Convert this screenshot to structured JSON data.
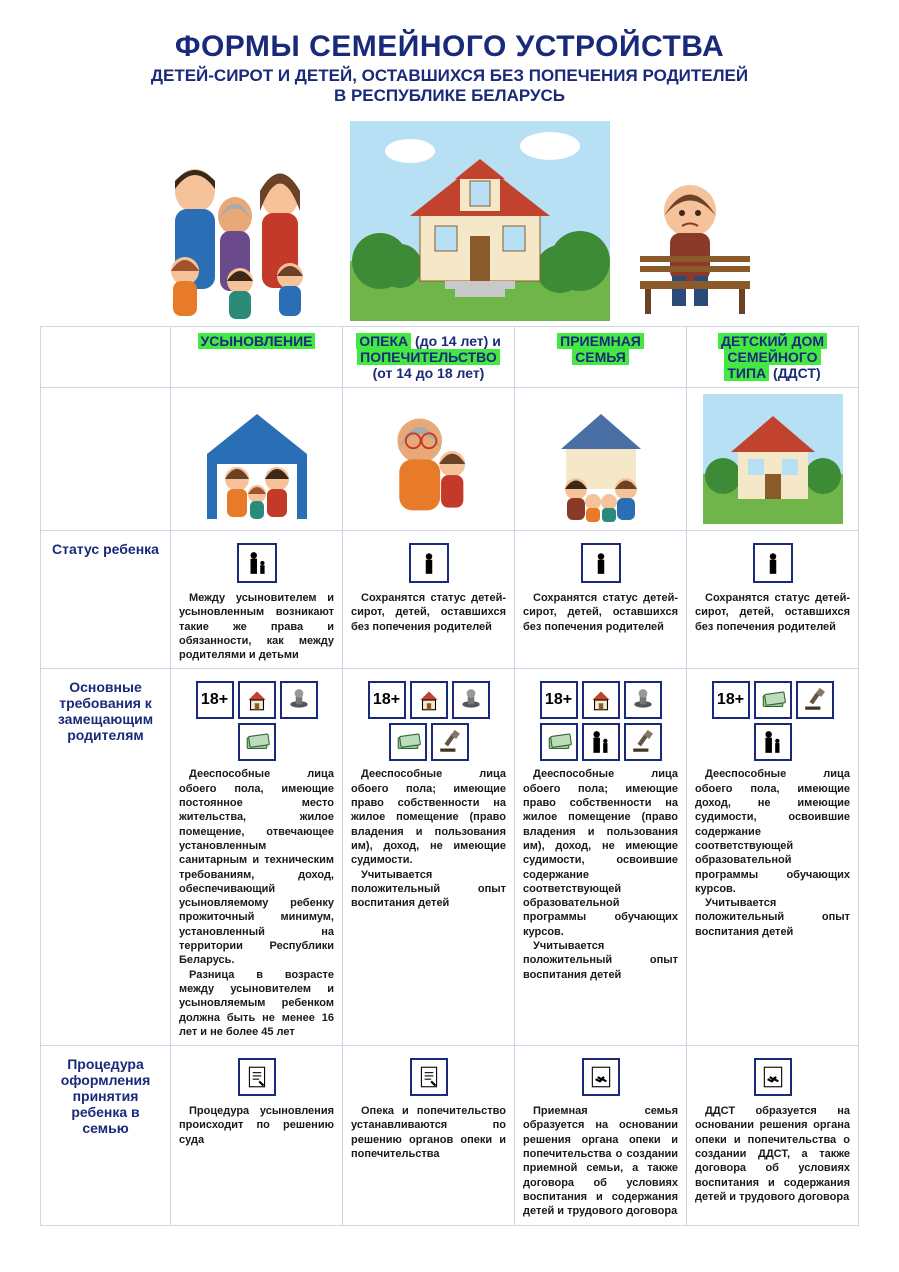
{
  "colors": {
    "primary": "#1a2a7a",
    "highlight": "#43e843",
    "border": "#d0d4e4",
    "background": "#ffffff",
    "text": "#1a1a1a",
    "sky": "#b8e0f5",
    "grass": "#6fb54a",
    "bush": "#3d8b37",
    "cloud": "#ffffff",
    "roof": "#c1432e",
    "wall_cream": "#f5e8c8",
    "wall_blue": "#4a6fa5",
    "brown": "#8b5a2b",
    "skin1": "#f5c29a",
    "skin2": "#e8a878",
    "hair_dark": "#3a2818",
    "hair_brown": "#6b4226",
    "hair_gray": "#aaaaaa",
    "hair_red": "#a0522d",
    "shirt_blue": "#2a6fb5",
    "shirt_orange": "#e87b2a",
    "shirt_maroon": "#8b3a2a",
    "shirt_teal": "#2a8b7a",
    "shirt_red": "#c43a2a",
    "shirt_purple": "#6a4a8a"
  },
  "title": {
    "main": "ФОРМЫ СЕМЕЙНОГО УСТРОЙСТВА",
    "sub1": "ДЕТЕЙ-СИРОТ И ДЕТЕЙ, ОСТАВШИХСЯ БЕЗ ПОПЕЧЕНИЯ РОДИТЕЛЕЙ",
    "sub2": "В РЕСПУБЛИКЕ БЕЛАРУСЬ"
  },
  "icons": {
    "eighteen_plus": "18+",
    "house_icon": "house",
    "doc_icon": "doc",
    "money_icon": "money",
    "stamp_icon": "stamp",
    "gavel_icon": "gavel",
    "people_icon": "people",
    "handshake_icon": "handshake",
    "person_icon": "person",
    "parent_child_icon": "parent-child"
  },
  "columns": [
    {
      "key": "adoption",
      "head_highlight": "УСЫНОВЛЕНИЕ",
      "head_plain": ""
    },
    {
      "key": "custody",
      "head_hl1": "ОПЕКА",
      "head_after1": " (до 14 лет) и ",
      "head_hl2": "ПОПЕЧИТЕЛЬСТВО",
      "head_after2": " (от 14 до 18 лет)"
    },
    {
      "key": "foster",
      "head_hl1": "ПРИЕМНАЯ",
      "head_hl2": "СЕМЬЯ"
    },
    {
      "key": "ddst",
      "head_hl1": "ДЕТСКИЙ ДОМ",
      "head_hl2": "СЕМЕЙНОГО",
      "head_hl3": "ТИПА",
      "head_after": " (ДДСТ)"
    }
  ],
  "rows": {
    "status": {
      "label": "Статус ребенка",
      "cells": [
        "Между усыновителем и усыновленным возникают такие же права и обязанности, как между родителями и детьми",
        "Сохранятся статус детей-сирот, детей, оставшихся без попечения родителей",
        "Сохранятся статус детей-сирот, детей, оставшихся без попечения родителей",
        "Сохранятся статус детей-сирот, детей, оставшихся без попечения родителей"
      ],
      "status_icons": [
        "parent-child",
        "person",
        "person",
        "person"
      ]
    },
    "requirements": {
      "label": "Основные требования к замещающим родителям",
      "icon_sets": [
        [
          "18+",
          "house",
          "stamp",
          "money"
        ],
        [
          "18+",
          "house",
          "stamp",
          "money",
          "gavel"
        ],
        [
          "18+",
          "house",
          "stamp",
          "money",
          "people",
          "gavel"
        ],
        [
          "18+",
          "money",
          "gavel",
          "people"
        ]
      ],
      "cells": [
        "Дееспособные лица обоего пола, имеющие постоянное место жительства, жилое помещение, отвечающее установленным санитарным и техническим требованиям, доход, обеспечивающий усыновляемому ребенку прожиточный минимум, установленный на территории Республики Беларусь.\nРазница в возрасте между усыновителем и усыновляемым ребенком должна быть не менее 16 лет и не более 45 лет",
        "Дееспособные лица обоего пола; имеющие право собственности на жилое помещение (право владения и пользования им), доход, не имеющие судимости.\nУчитывается положительный опыт воспитания детей",
        "Дееспособные лица обоего пола; имеющие право собственности на жилое помещение (право владения и пользования им), доход, не имеющие судимости, освоившие содержание соответствующей образовательной программы обучающих курсов.\nУчитывается положительный опыт воспитания детей",
        "Дееспособные лица обоего пола, имеющие доход, не имеющие судимости, освоившие содержание соответствующей образовательной программы обучающих курсов.\nУчитывается положительный опыт воспитания детей"
      ]
    },
    "procedure": {
      "label": "Процедура оформления принятия ребенка в семью",
      "proc_icons": [
        "doc",
        "doc",
        "handshake",
        "handshake"
      ],
      "cells": [
        "Процедура усыновления происходит по решению суда",
        "Опека и попечительство устанавливаются по решению органов опеки и попечительства",
        "Приемная семья образуется на основании решения органа опеки и попечительства о создании приемной семьи, а также договора об условиях воспитания и содержания детей и трудового договора",
        "ДДСТ образуется на основании решения органа опеки и попечительства о создании ДДСТ, а также договора об условиях воспитания и содержания детей и трудового договора"
      ]
    }
  }
}
